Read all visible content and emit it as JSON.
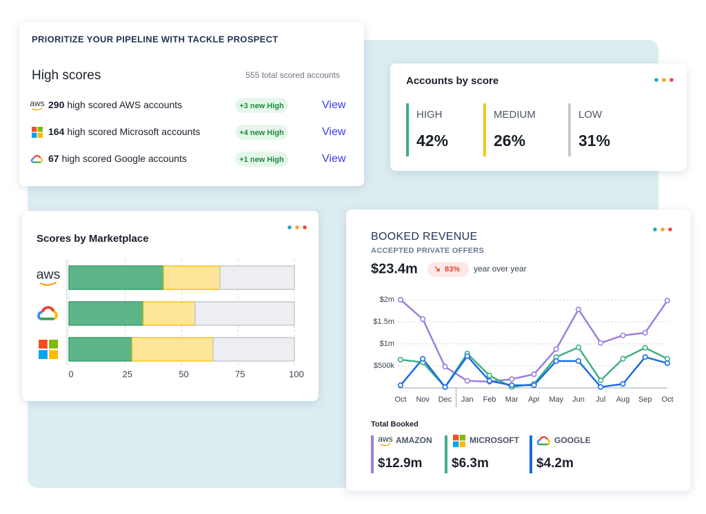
{
  "header": {
    "title": "PRIORITIZE YOUR PIPELINE WITH TACKLE PROSPECT"
  },
  "logos": {
    "aws": "aws"
  },
  "high_scores": {
    "title": "High scores",
    "total": "555 total scored accounts",
    "rows": [
      {
        "count": 290,
        "label": "high scored AWS accounts",
        "badge": "+3 new High",
        "action": "View"
      },
      {
        "count": 164,
        "label": "high scored Microsoft accounts",
        "badge": "+4 new High",
        "action": "View"
      },
      {
        "count": 67,
        "label": "high scored Google accounts",
        "badge": "+1 new High",
        "action": "View"
      }
    ]
  },
  "accounts_by_score": {
    "title": "Accounts by score",
    "items": [
      {
        "label": "HIGH",
        "value": "42%",
        "color": "#3fb07f"
      },
      {
        "label": "MEDIUM",
        "value": "26%",
        "color": "#f5c518"
      },
      {
        "label": "LOW",
        "value": "31%",
        "color": "#c5c9d2"
      }
    ]
  },
  "chart_data": [
    {
      "type": "bar",
      "stacked": true,
      "orientation": "horizontal",
      "title": "Scores by Marketplace",
      "categories": [
        null,
        null,
        null
      ],
      "series": [
        {
          "color": "#5db58a",
          "values": [
            42,
            33,
            28
          ]
        },
        {
          "color": "#fde69a",
          "values": [
            25,
            23,
            36
          ]
        },
        {
          "color": "#eceef2",
          "values": [
            33,
            44,
            36
          ]
        }
      ],
      "xlim": [
        0,
        100
      ],
      "xticks": [
        0,
        25,
        50,
        75,
        100
      ],
      "grid": true
    },
    {
      "type": "line",
      "title": "BOOKED REVENUE",
      "subtitle": "ACCEPTED PRIVATE OFFERS",
      "categories": [
        "Oct",
        "Nov",
        "Dec",
        "Jan",
        "Feb",
        "Mar",
        "Apr",
        "May",
        "Jun",
        "Jul",
        "Aug",
        "Sep",
        "Oct"
      ],
      "series": [
        {
          "name": "AMAZON",
          "color": "#9b7ee0",
          "values": [
            2000000,
            1560000,
            480000,
            160000,
            140000,
            200000,
            310000,
            880000,
            1780000,
            1020000,
            1190000,
            1250000,
            1980000
          ]
        },
        {
          "name": "MICROSOFT",
          "color": "#3fb07f",
          "values": [
            640000,
            580000,
            20000,
            780000,
            280000,
            20000,
            90000,
            700000,
            920000,
            170000,
            660000,
            910000,
            660000
          ]
        },
        {
          "name": "GOOGLE",
          "color": "#1a6be6",
          "values": [
            60000,
            660000,
            20000,
            720000,
            160000,
            60000,
            60000,
            610000,
            610000,
            20000,
            90000,
            700000,
            560000
          ]
        }
      ],
      "ylim": [
        0,
        2000000
      ],
      "yticks": [
        {
          "value": 500000,
          "label": "$500k"
        },
        {
          "value": 1000000,
          "label": "$1m"
        },
        {
          "value": 1500000,
          "label": "$1.5m"
        },
        {
          "value": 2000000,
          "label": "$2m"
        }
      ],
      "grid": true,
      "legend_title": "Total Booked",
      "totals": [
        "$12.9m",
        "$6.3m",
        "$4.2m"
      ]
    }
  ],
  "booked_revenue": {
    "total": "$23.4m",
    "change": "83%",
    "change_note": "year over year"
  }
}
